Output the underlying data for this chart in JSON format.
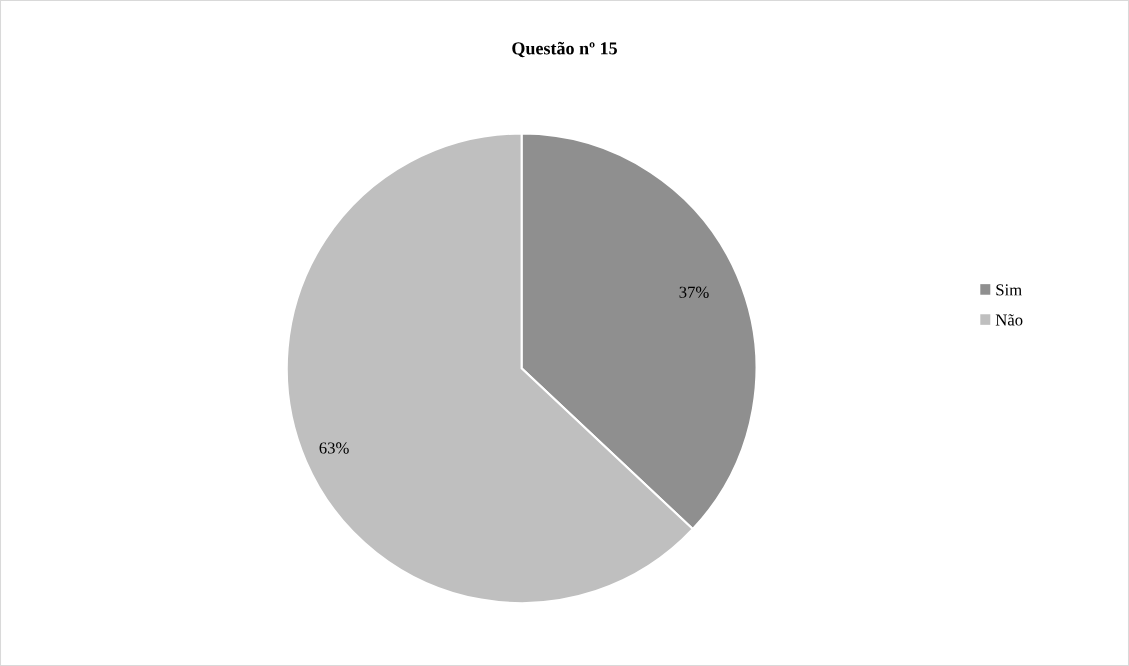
{
  "chart_data": {
    "type": "pie",
    "title": "Questão nº 15",
    "categories": [
      "Sim",
      "Não"
    ],
    "values": [
      37,
      63
    ],
    "colors": [
      "#8f8f8f",
      "#bfbfbf"
    ],
    "value_labels": [
      "37%",
      "63%"
    ],
    "legend": "right"
  }
}
